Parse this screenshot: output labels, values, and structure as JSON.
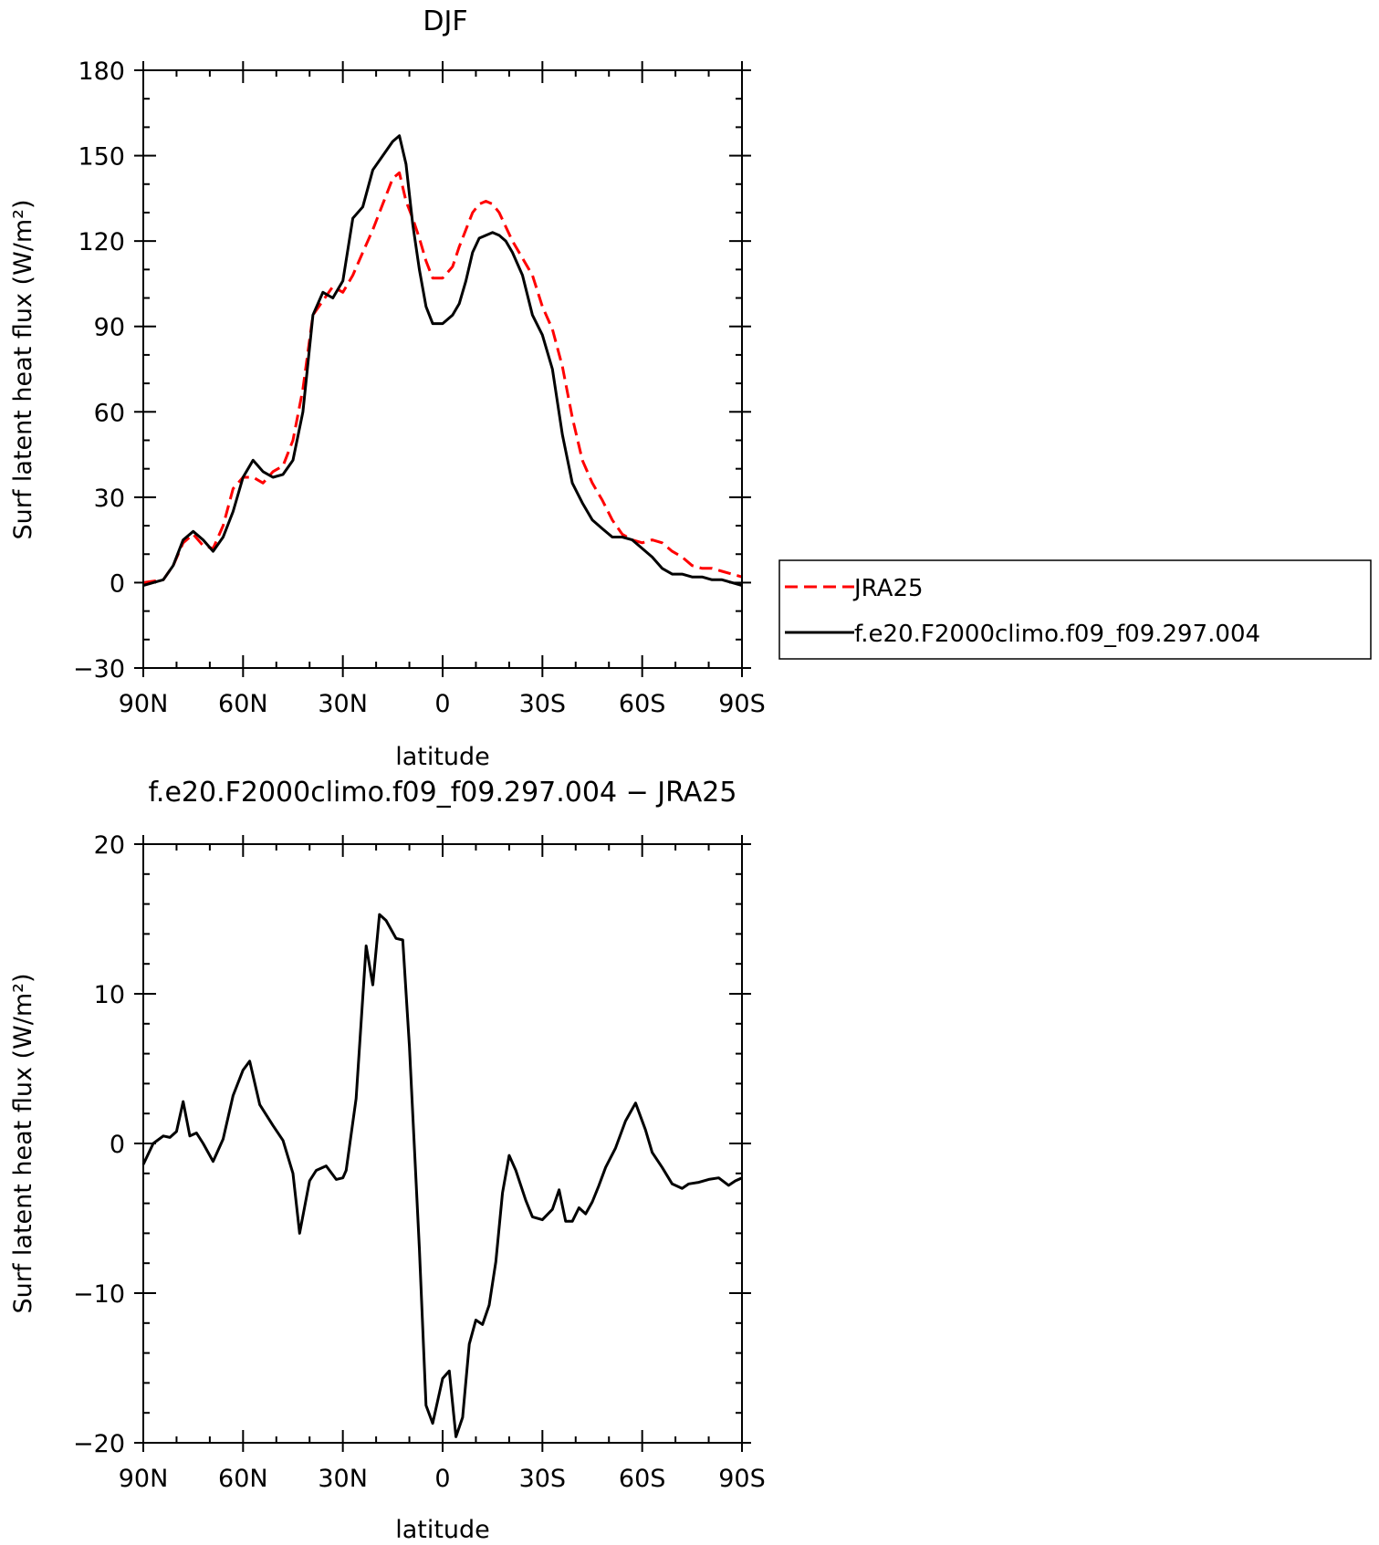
{
  "chart_data": [
    {
      "type": "line",
      "title": "DJF",
      "xlabel": "latitude",
      "ylabel": "Surf latent heat flux (W/m²)",
      "xlim": [
        -90,
        90
      ],
      "ylim": [
        -30,
        180
      ],
      "x_ticks": [
        -90,
        -60,
        -30,
        0,
        30,
        60,
        90
      ],
      "x_tick_labels": [
        "90N",
        "60N",
        "30N",
        "0",
        "30S",
        "60S",
        "90S"
      ],
      "y_ticks": [
        -30,
        0,
        30,
        60,
        90,
        120,
        150,
        180
      ],
      "y_tick_labels": [
        "−30",
        "0",
        "30",
        "60",
        "90",
        "120",
        "150",
        "180"
      ],
      "legend": {
        "placement": "right"
      },
      "series": [
        {
          "name": "JRA25",
          "color": "#ff0000",
          "style": "dashed",
          "x": [
            -90,
            -87,
            -84,
            -81,
            -78,
            -75,
            -72,
            -69,
            -66,
            -63,
            -60,
            -57,
            -54,
            -51,
            -48,
            -45,
            -42,
            -39,
            -36,
            -33,
            -30,
            -27,
            -24,
            -21,
            -18,
            -15,
            -13,
            -11,
            -9,
            -7,
            -5,
            -3,
            0,
            3,
            5,
            7,
            9,
            11,
            13,
            15,
            17,
            19,
            21,
            24,
            27,
            30,
            33,
            36,
            39,
            42,
            45,
            48,
            51,
            54,
            57,
            60,
            63,
            66,
            69,
            72,
            75,
            78,
            81,
            84,
            87,
            90
          ],
          "values": [
            0,
            0.5,
            1,
            6,
            14,
            17,
            13,
            12,
            20,
            33,
            37,
            37,
            35,
            39,
            41,
            50,
            68,
            94,
            99,
            104,
            102,
            108,
            116,
            124,
            133,
            142,
            144,
            134,
            128,
            121,
            113,
            107,
            107,
            111,
            118,
            124,
            130,
            133,
            134,
            133,
            130,
            125,
            120,
            114,
            108,
            97,
            89,
            76,
            58,
            43,
            35,
            29,
            22,
            17,
            15,
            14,
            15,
            14,
            11,
            9,
            6,
            5,
            5,
            4,
            3,
            2
          ]
        },
        {
          "name": "f.e20.F2000climo.f09_f09.297.004",
          "color": "#000000",
          "style": "solid",
          "x": [
            -90,
            -87,
            -84,
            -81,
            -78,
            -75,
            -72,
            -69,
            -66,
            -63,
            -60,
            -57,
            -54,
            -51,
            -48,
            -45,
            -42,
            -39,
            -36,
            -33,
            -30,
            -27,
            -24,
            -21,
            -18,
            -15,
            -13,
            -11,
            -9,
            -7,
            -5,
            -3,
            0,
            3,
            5,
            7,
            9,
            11,
            13,
            15,
            17,
            19,
            21,
            24,
            27,
            30,
            33,
            36,
            39,
            42,
            45,
            48,
            51,
            54,
            57,
            60,
            63,
            66,
            69,
            72,
            75,
            78,
            81,
            84,
            87,
            90
          ],
          "values": [
            -1,
            0,
            1,
            6,
            15,
            18,
            15,
            11,
            16,
            25,
            37,
            43,
            39,
            37,
            38,
            43,
            60,
            94,
            102,
            100,
            106,
            128,
            132,
            145,
            150,
            155,
            157,
            147,
            126,
            110,
            97,
            91,
            91,
            94,
            98,
            106,
            116,
            121,
            122,
            123,
            122,
            120,
            116,
            108,
            94,
            87,
            75,
            52,
            35,
            28,
            22,
            19,
            16,
            16,
            15,
            12,
            9,
            5,
            3,
            3,
            2,
            2,
            1,
            1,
            0,
            -1
          ]
        }
      ]
    },
    {
      "type": "line",
      "title": "f.e20.F2000climo.f09_f09.297.004 − JRA25",
      "xlabel": "latitude",
      "ylabel": "Surf latent heat flux (W/m²)",
      "xlim": [
        -90,
        90
      ],
      "ylim": [
        -20,
        20
      ],
      "x_ticks": [
        -90,
        -60,
        -30,
        0,
        30,
        60,
        90
      ],
      "x_tick_labels": [
        "90N",
        "60N",
        "30N",
        "0",
        "30S",
        "60S",
        "90S"
      ],
      "y_ticks": [
        -20,
        -10,
        0,
        10,
        20
      ],
      "y_tick_labels": [
        "−20",
        "−10",
        "0",
        "10",
        "20"
      ],
      "series": [
        {
          "color": "#000000",
          "style": "solid",
          "x": [
            -90,
            -87,
            -84,
            -82,
            -80,
            -78,
            -76,
            -74,
            -72,
            -69,
            -66,
            -63,
            -60,
            -58,
            -55,
            -51,
            -48,
            -45,
            -43,
            -40,
            -38,
            -35,
            -32,
            -30,
            -29,
            -26,
            -23,
            -21,
            -19,
            -17,
            -14,
            -12,
            -10,
            -7,
            -5,
            -3,
            0,
            2,
            4,
            6,
            8,
            10,
            12,
            14,
            16,
            18,
            20,
            22,
            25,
            27,
            30,
            33,
            35,
            37,
            39,
            41,
            43,
            45,
            47,
            49,
            52,
            55,
            58,
            61,
            63,
            66,
            69,
            72,
            74,
            77,
            80,
            83,
            86,
            88,
            90
          ],
          "values": [
            -1.4,
            0,
            0.5,
            0.4,
            0.8,
            2.8,
            0.5,
            0.7,
            0,
            -1.2,
            0.3,
            3.2,
            4.9,
            5.5,
            2.6,
            1.2,
            0.2,
            -2,
            -6,
            -2.5,
            -1.8,
            -1.5,
            -2.4,
            -2.3,
            -1.8,
            3,
            13.2,
            10.6,
            15.3,
            14.9,
            13.7,
            13.6,
            6.5,
            -7,
            -17.5,
            -18.7,
            -15.7,
            -15.2,
            -19.6,
            -18.3,
            -13.4,
            -11.8,
            -12.1,
            -10.8,
            -7.9,
            -3.3,
            -0.8,
            -1.8,
            -3.8,
            -4.9,
            -5.1,
            -4.4,
            -3.1,
            -5.2,
            -5.2,
            -4.3,
            -4.7,
            -3.9,
            -2.8,
            -1.6,
            -0.3,
            1.5,
            2.7,
            0.9,
            -0.6,
            -1.6,
            -2.7,
            -3,
            -2.7,
            -2.6,
            -2.4,
            -2.3,
            -2.8,
            -2.5,
            -2.3
          ]
        }
      ]
    }
  ]
}
